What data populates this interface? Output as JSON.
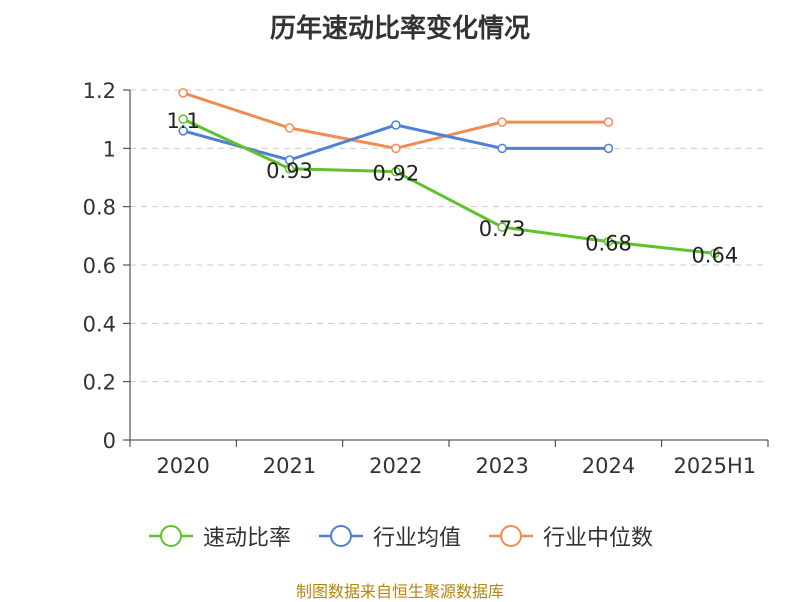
{
  "title": "历年速动比率变化情况",
  "source": "制图数据来自恒生聚源数据库",
  "colors": {
    "速动比率": "#5ec22b",
    "行业均值": "#4f7fd6",
    "行业中位数": "#f28b54",
    "grid": "#cccccc",
    "axis": "#333333"
  },
  "chart_data": {
    "type": "line",
    "title": "历年速动比率变化情况",
    "categories": [
      "2020",
      "2021",
      "2022",
      "2023",
      "2024",
      "2025H1"
    ],
    "ylim": [
      0,
      1.2
    ],
    "yticks": [
      "0",
      "0.2",
      "0.4",
      "0.6",
      "0.8",
      "1",
      "1.2"
    ],
    "grid": true,
    "legend_position": "bottom",
    "series": [
      {
        "name": "速动比率",
        "values": [
          1.1,
          0.93,
          0.92,
          0.73,
          0.68,
          0.64
        ],
        "data_labels": [
          "1.1",
          "0.93",
          "0.92",
          "0.73",
          "0.68",
          "0.64"
        ]
      },
      {
        "name": "行业均值",
        "values": [
          1.06,
          0.96,
          1.08,
          1.0,
          1.0,
          null
        ]
      },
      {
        "name": "行业中位数",
        "values": [
          1.19,
          1.07,
          1.0,
          1.09,
          1.09,
          null
        ]
      }
    ]
  }
}
